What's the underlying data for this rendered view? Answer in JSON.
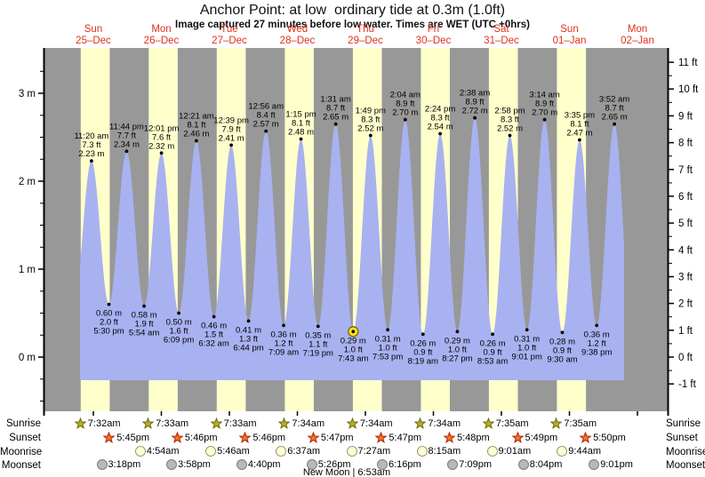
{
  "header": {
    "title": "Anchor Point: at low  ordinary tide at 0.3m (1.0ft)",
    "subtitle": "Image captured 27 minutes before low water. Times are WET (UTC +0hrs)"
  },
  "colors": {
    "plot_night_gray": "#989898",
    "daylight_band_yellow": "#ffffcc",
    "tide_fill_blue": "#a8b2f0",
    "day_label_red": "#e0301a",
    "axis_black": "#000000",
    "sunrise_star_fill": "#b3ae2e",
    "sunrise_star_stroke": "#6f6a00",
    "sunset_star_fill": "#ef7728",
    "sunset_star_stroke": "#b31f00",
    "moonrise_circle_fill": "#ffffd6",
    "moonrise_circle_stroke": "#9a9a70",
    "moonset_circle_fill": "#b8b8b8",
    "moonset_circle_stroke": "#7d7d7d",
    "current_marker_fill": "#ffe71e",
    "current_marker_stroke": "#7a6400"
  },
  "axes": {
    "left_unit": "m",
    "right_unit": "ft",
    "left_labels": [
      "0 m",
      "1 m",
      "2 m",
      "3 m"
    ],
    "right_labels": [
      "-1 ft",
      "0 ft",
      "1 ft",
      "2 ft",
      "3 ft",
      "4 ft",
      "5 ft",
      "6 ft",
      "7 ft",
      "8 ft",
      "9 ft",
      "10 ft",
      "11 ft"
    ]
  },
  "chart_data": {
    "type": "area",
    "title": "Anchor Point: at low  ordinary tide at 0.3m (1.0ft)",
    "subtitle": "Image captured 27 minutes before low water. Times are WET (UTC +0hrs)",
    "y_left_ticks_m": [
      0,
      1,
      2,
      3
    ],
    "y_right_ticks_ft": [
      -1,
      0,
      1,
      2,
      3,
      4,
      5,
      6,
      7,
      8,
      9,
      10,
      11
    ],
    "days": [
      {
        "dow": "Sun",
        "date": "25–Dec"
      },
      {
        "dow": "Mon",
        "date": "26–Dec"
      },
      {
        "dow": "Tue",
        "date": "27–Dec"
      },
      {
        "dow": "Wed",
        "date": "28–Dec"
      },
      {
        "dow": "Thu",
        "date": "29–Dec"
      },
      {
        "dow": "Fri",
        "date": "30–Dec"
      },
      {
        "dow": "Sat",
        "date": "31–Dec"
      },
      {
        "dow": "Sun",
        "date": "01–Jan"
      },
      {
        "dow": "Mon",
        "date": "02–Jan"
      }
    ],
    "events": [
      {
        "day": 0,
        "type": "high",
        "time": "11:20 am",
        "ft": "7.3 ft",
        "m": "2.23 m"
      },
      {
        "day": 0,
        "type": "low",
        "time": "5:30 pm",
        "ft": "2.0 ft",
        "m": "0.60 m"
      },
      {
        "day": 0,
        "type": "high",
        "time": "11:44 pm",
        "ft": "7.7 ft",
        "m": "2.34 m"
      },
      {
        "day": 1,
        "type": "low",
        "time": "5:54 am",
        "ft": "1.9 ft",
        "m": "0.58 m"
      },
      {
        "day": 1,
        "type": "high",
        "time": "12:01 pm",
        "ft": "7.6 ft",
        "m": "2.32 m"
      },
      {
        "day": 1,
        "type": "low",
        "time": "6:09 pm",
        "ft": "1.6 ft",
        "m": "0.50 m"
      },
      {
        "day": 2,
        "type": "high",
        "time": "12:21 am",
        "ft": "8.1 ft",
        "m": "2.46 m"
      },
      {
        "day": 2,
        "type": "low",
        "time": "6:32 am",
        "ft": "1.5 ft",
        "m": "0.46 m"
      },
      {
        "day": 2,
        "type": "high",
        "time": "12:39 pm",
        "ft": "7.9 ft",
        "m": "2.41 m"
      },
      {
        "day": 2,
        "type": "low",
        "time": "6:44 pm",
        "ft": "1.3 ft",
        "m": "0.41 m"
      },
      {
        "day": 3,
        "type": "high",
        "time": "12:56 am",
        "ft": "8.4 ft",
        "m": "2.57 m"
      },
      {
        "day": 3,
        "type": "low",
        "time": "7:09 am",
        "ft": "1.2 ft",
        "m": "0.36 m"
      },
      {
        "day": 3,
        "type": "high",
        "time": "1:15 pm",
        "ft": "8.1 ft",
        "m": "2.48 m"
      },
      {
        "day": 3,
        "type": "low",
        "time": "7:19 pm",
        "ft": "1.1 ft",
        "m": "0.35 m"
      },
      {
        "day": 4,
        "type": "high",
        "time": "1:31 am",
        "ft": "8.7 ft",
        "m": "2.65 m"
      },
      {
        "day": 4,
        "type": "low",
        "time": "7:43 am",
        "ft": "1.0 ft",
        "m": "0.29 m"
      },
      {
        "day": 4,
        "type": "high",
        "time": "1:49 pm",
        "ft": "8.3 ft",
        "m": "2.52 m"
      },
      {
        "day": 4,
        "type": "low",
        "time": "7:53 pm",
        "ft": "1.0 ft",
        "m": "0.31 m"
      },
      {
        "day": 5,
        "type": "high",
        "time": "2:04 am",
        "ft": "8.9 ft",
        "m": "2.70 m"
      },
      {
        "day": 5,
        "type": "low",
        "time": "8:19 am",
        "ft": "0.9 ft",
        "m": "0.26 m"
      },
      {
        "day": 5,
        "type": "high",
        "time": "2:24 pm",
        "ft": "8.3 ft",
        "m": "2.54 m"
      },
      {
        "day": 5,
        "type": "low",
        "time": "8:27 pm",
        "ft": "1.0 ft",
        "m": "0.29 m"
      },
      {
        "day": 6,
        "type": "high",
        "time": "2:38 am",
        "ft": "8.9 ft",
        "m": "2.72 m"
      },
      {
        "day": 6,
        "type": "low",
        "time": "8:53 am",
        "ft": "0.9 ft",
        "m": "0.26 m"
      },
      {
        "day": 6,
        "type": "high",
        "time": "2:58 pm",
        "ft": "8.3 ft",
        "m": "2.52 m"
      },
      {
        "day": 6,
        "type": "low",
        "time": "9:01 pm",
        "ft": "1.0 ft",
        "m": "0.31 m"
      },
      {
        "day": 7,
        "type": "high",
        "time": "3:14 am",
        "ft": "8.9 ft",
        "m": "2.70 m"
      },
      {
        "day": 7,
        "type": "low",
        "time": "9:30 am",
        "ft": "0.9 ft",
        "m": "0.28 m"
      },
      {
        "day": 7,
        "type": "high",
        "time": "3:35 pm",
        "ft": "8.1 ft",
        "m": "2.47 m"
      },
      {
        "day": 7,
        "type": "low",
        "time": "9:38 pm",
        "ft": "1.2 ft",
        "m": "0.36 m"
      },
      {
        "day": 8,
        "type": "high",
        "time": "3:52 am",
        "ft": "8.7 ft",
        "m": "2.65 m"
      }
    ],
    "current_marker_event_index": 15
  },
  "astro": {
    "row_labels": [
      "Sunrise",
      "Sunset",
      "Moonrise",
      "Moonset"
    ],
    "sunrise": [
      {
        "day": 0,
        "time": "7:32am"
      },
      {
        "day": 1,
        "time": "7:33am"
      },
      {
        "day": 2,
        "time": "7:33am"
      },
      {
        "day": 3,
        "time": "7:34am"
      },
      {
        "day": 4,
        "time": "7:34am"
      },
      {
        "day": 5,
        "time": "7:34am"
      },
      {
        "day": 6,
        "time": "7:35am"
      },
      {
        "day": 7,
        "time": "7:35am"
      }
    ],
    "sunset": [
      {
        "day": 0,
        "time": "5:45pm"
      },
      {
        "day": 1,
        "time": "5:46pm"
      },
      {
        "day": 2,
        "time": "5:46pm"
      },
      {
        "day": 3,
        "time": "5:47pm"
      },
      {
        "day": 4,
        "time": "5:47pm"
      },
      {
        "day": 5,
        "time": "5:48pm"
      },
      {
        "day": 6,
        "time": "5:49pm"
      },
      {
        "day": 7,
        "time": "5:50pm"
      }
    ],
    "moonrise": [
      {
        "day": 1,
        "time": "4:54am"
      },
      {
        "day": 2,
        "time": "5:46am"
      },
      {
        "day": 3,
        "time": "6:37am"
      },
      {
        "day": 4,
        "time": "7:27am"
      },
      {
        "day": 5,
        "time": "8:15am"
      },
      {
        "day": 6,
        "time": "9:01am"
      },
      {
        "day": 7,
        "time": "9:44am"
      }
    ],
    "moonset": [
      {
        "day": 0,
        "time": "3:18pm"
      },
      {
        "day": 1,
        "time": "3:58pm"
      },
      {
        "day": 2,
        "time": "4:40pm"
      },
      {
        "day": 3,
        "time": "5:26pm"
      },
      {
        "day": 4,
        "time": "6:16pm"
      },
      {
        "day": 5,
        "time": "7:09pm"
      },
      {
        "day": 6,
        "time": "8:04pm"
      },
      {
        "day": 7,
        "time": "9:01pm"
      }
    ],
    "new_moon": "New Moon | 6:53am"
  }
}
